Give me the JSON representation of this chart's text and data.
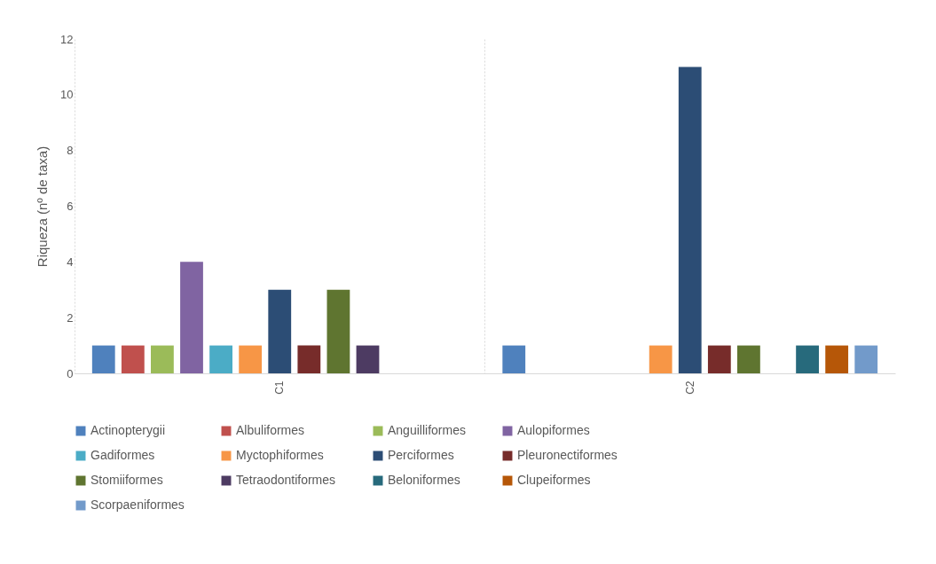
{
  "chart_data": {
    "type": "bar",
    "ylabel": "Riqueza (nº de taxa)",
    "categories": [
      "C1",
      "C2"
    ],
    "series": [
      {
        "name": "Actinopterygii",
        "color": "#4f81bd",
        "values": [
          1,
          1
        ]
      },
      {
        "name": "Albuliformes",
        "color": "#c0504d",
        "values": [
          1,
          null
        ]
      },
      {
        "name": "Anguilliformes",
        "color": "#9bbb59",
        "values": [
          1,
          null
        ]
      },
      {
        "name": "Aulopiformes",
        "color": "#8064a2",
        "values": [
          4,
          null
        ]
      },
      {
        "name": "Gadiformes",
        "color": "#4bacc6",
        "values": [
          1,
          null
        ]
      },
      {
        "name": "Myctophiformes",
        "color": "#f79646",
        "values": [
          1,
          1
        ]
      },
      {
        "name": "Perciformes",
        "color": "#2c4d75",
        "values": [
          3,
          11
        ]
      },
      {
        "name": "Pleuronectiformes",
        "color": "#772c2a",
        "values": [
          1,
          1
        ]
      },
      {
        "name": "Stomiiformes",
        "color": "#5f7530",
        "values": [
          3,
          1
        ]
      },
      {
        "name": "Tetraodontiformes",
        "color": "#4d3b62",
        "values": [
          1,
          null
        ]
      },
      {
        "name": "Beloniformes",
        "color": "#276a7c",
        "values": [
          null,
          1
        ]
      },
      {
        "name": "Clupeiformes",
        "color": "#b65708",
        "values": [
          null,
          1
        ]
      },
      {
        "name": "Scorpaeniformes",
        "color": "#729aca",
        "values": [
          null,
          1
        ]
      }
    ],
    "ylim": [
      0,
      12
    ],
    "yticks": [
      0,
      2,
      4,
      6,
      8,
      10,
      12
    ],
    "grid": "x",
    "legend": "bottom"
  }
}
